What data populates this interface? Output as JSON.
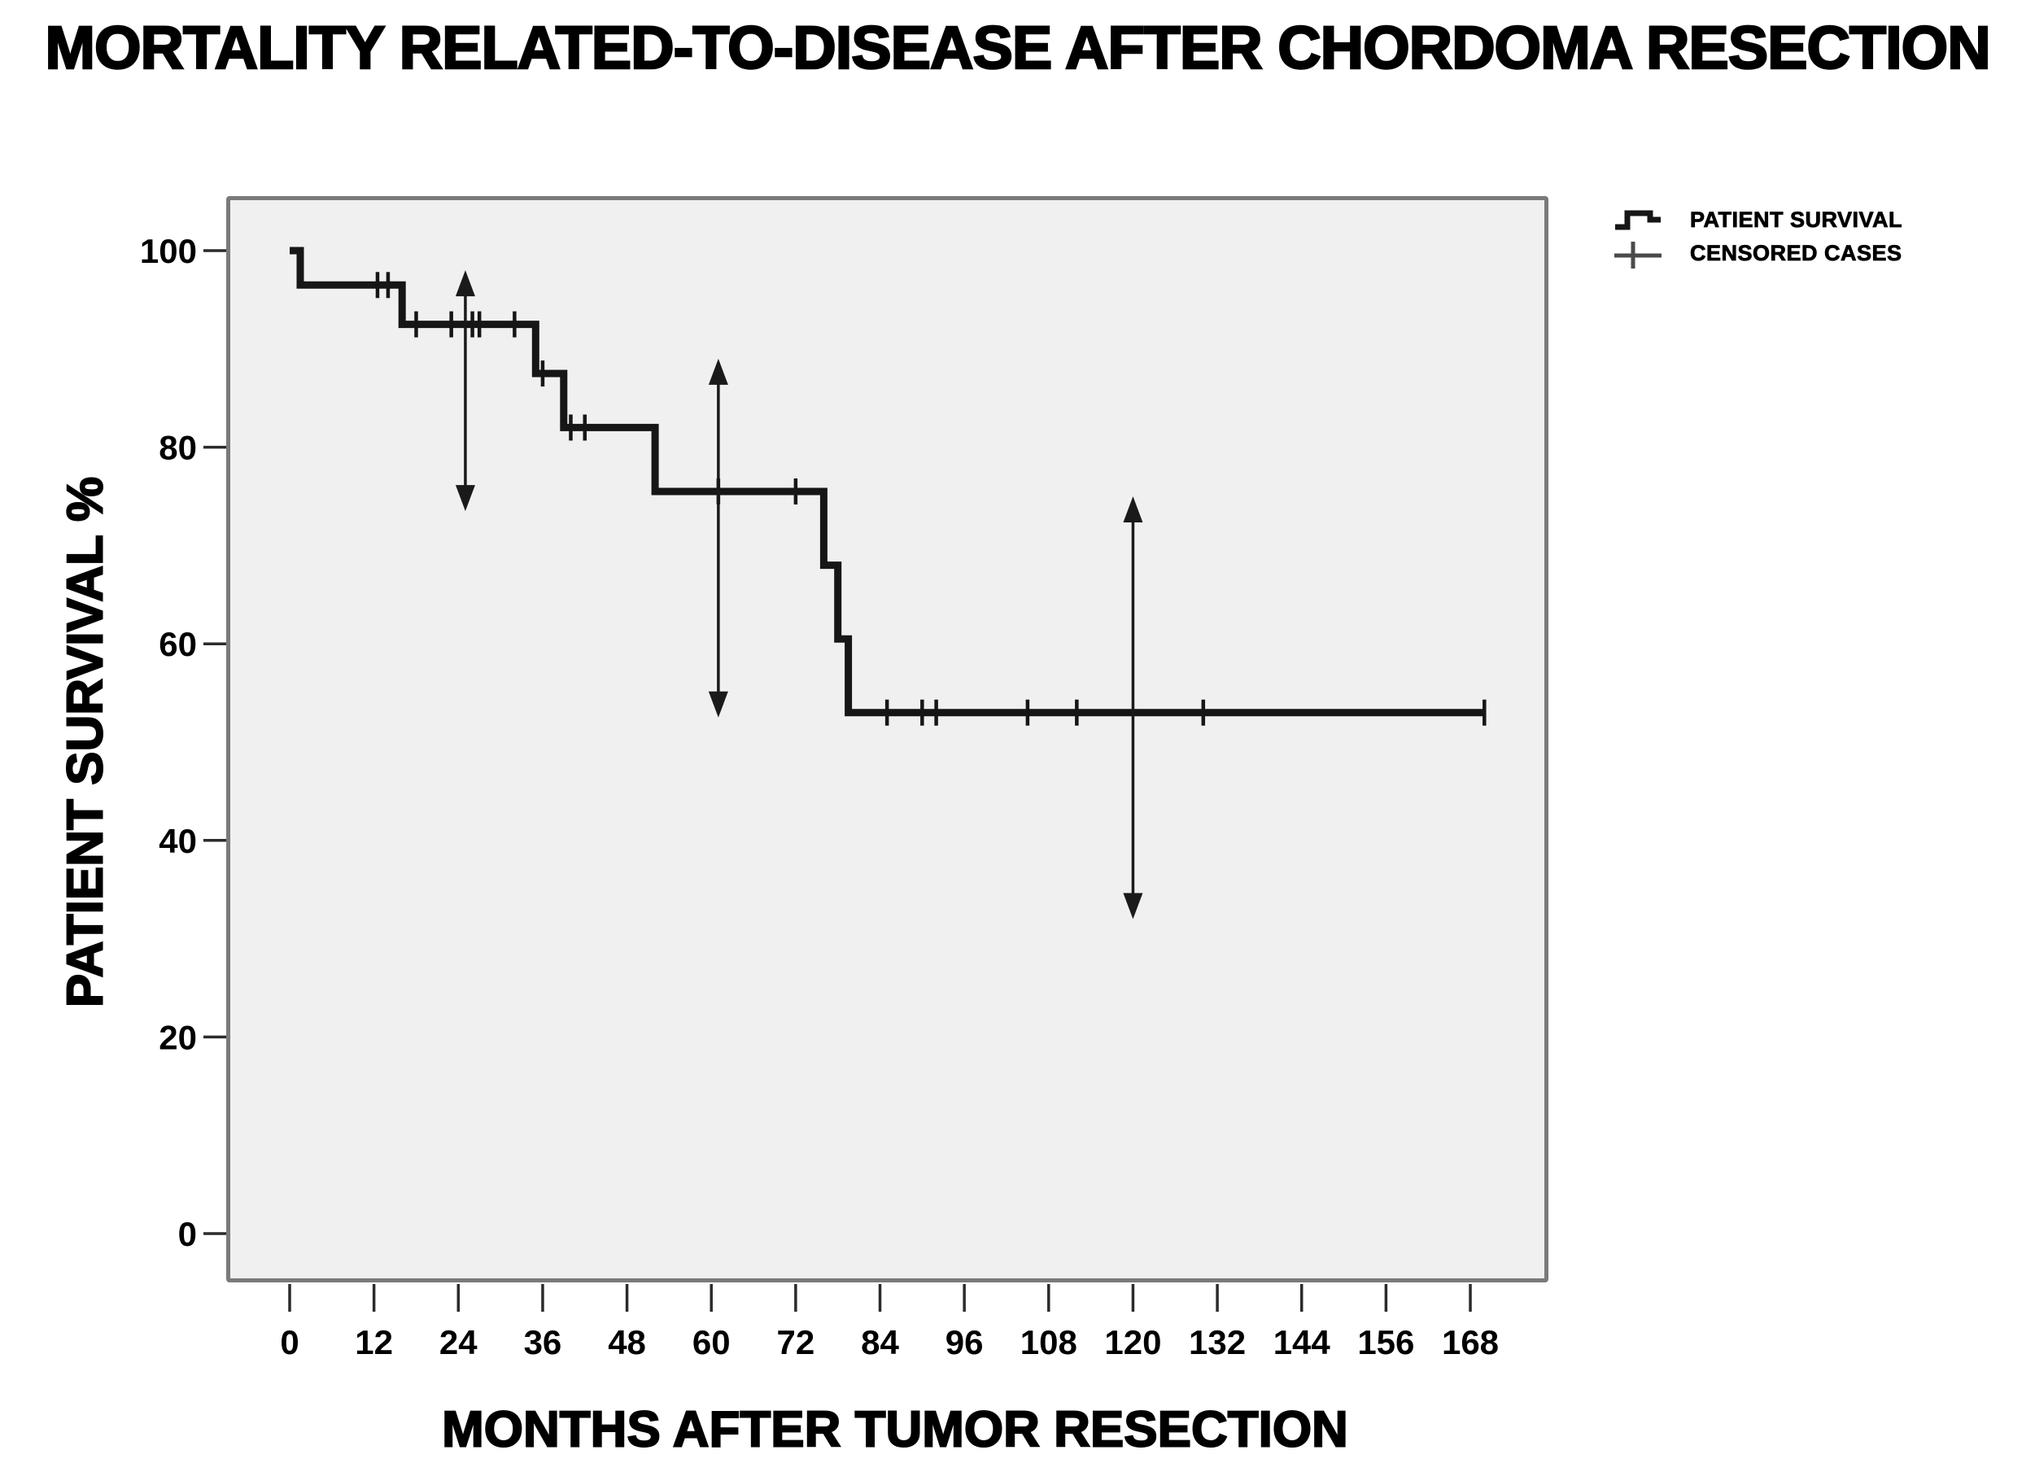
{
  "title": "MORTALITY RELATED-TO-DISEASE AFTER CHORDOMA RESECTION",
  "legend": {
    "items": [
      {
        "label": "PATIENT SURVIVAL",
        "icon": "step-line-icon"
      },
      {
        "label": "CENSORED CASES",
        "icon": "plus-icon"
      }
    ]
  },
  "colors": {
    "curve": "#161616",
    "censor": "#161616",
    "arrow": "#1a1a1a",
    "plot_background": "#f0f0f0",
    "plot_border": "#7a7a7a",
    "tick": "#2b2b2b",
    "text": "#000000"
  },
  "chart_data": {
    "type": "line",
    "subtype": "kaplan-meier-step",
    "title": "MORTALITY RELATED-TO-DISEASE AFTER CHORDOMA RESECTION",
    "xlabel": "MONTHS AFTER TUMOR RESECTION",
    "ylabel": "PATIENT SURVIVAL %",
    "x_ticks": [
      0,
      12,
      24,
      36,
      48,
      60,
      72,
      84,
      96,
      108,
      120,
      132,
      144,
      156,
      168
    ],
    "y_ticks": [
      0,
      20,
      40,
      60,
      80,
      100
    ],
    "xlim": [
      0,
      168
    ],
    "ylim": [
      0,
      100
    ],
    "grid": false,
    "legend_position": "top-right-outside",
    "series": [
      {
        "name": "PATIENT SURVIVAL",
        "steps": [
          {
            "t": 0,
            "s": 100
          },
          {
            "t": 1.5,
            "s": 96.5
          },
          {
            "t": 16,
            "s": 92.5
          },
          {
            "t": 35,
            "s": 87.5
          },
          {
            "t": 39,
            "s": 82
          },
          {
            "t": 52,
            "s": 75.5
          },
          {
            "t": 76,
            "s": 68
          },
          {
            "t": 78,
            "s": 60.5
          },
          {
            "t": 79.5,
            "s": 53
          },
          {
            "t": 170,
            "s": 53
          }
        ],
        "censored": [
          {
            "t": 12.5,
            "s": 96.5
          },
          {
            "t": 14,
            "s": 96.5
          },
          {
            "t": 18,
            "s": 92.5
          },
          {
            "t": 23,
            "s": 92.5
          },
          {
            "t": 26,
            "s": 92.5
          },
          {
            "t": 27,
            "s": 92.5
          },
          {
            "t": 32,
            "s": 92.5
          },
          {
            "t": 36,
            "s": 87.5
          },
          {
            "t": 40,
            "s": 82
          },
          {
            "t": 42,
            "s": 82
          },
          {
            "t": 61,
            "s": 75.5
          },
          {
            "t": 72,
            "s": 75.5
          },
          {
            "t": 85,
            "s": 53
          },
          {
            "t": 90,
            "s": 53
          },
          {
            "t": 92,
            "s": 53
          },
          {
            "t": 105,
            "s": 53
          },
          {
            "t": 112,
            "s": 53
          },
          {
            "t": 130,
            "s": 53
          },
          {
            "t": 170,
            "s": 53
          }
        ]
      }
    ],
    "error_arrows": [
      {
        "x": 25,
        "y_low": 73.5,
        "y_high": 98
      },
      {
        "x": 61,
        "y_low": 52.5,
        "y_high": 89
      },
      {
        "x": 120,
        "y_low": 32,
        "y_high": 75
      }
    ]
  }
}
